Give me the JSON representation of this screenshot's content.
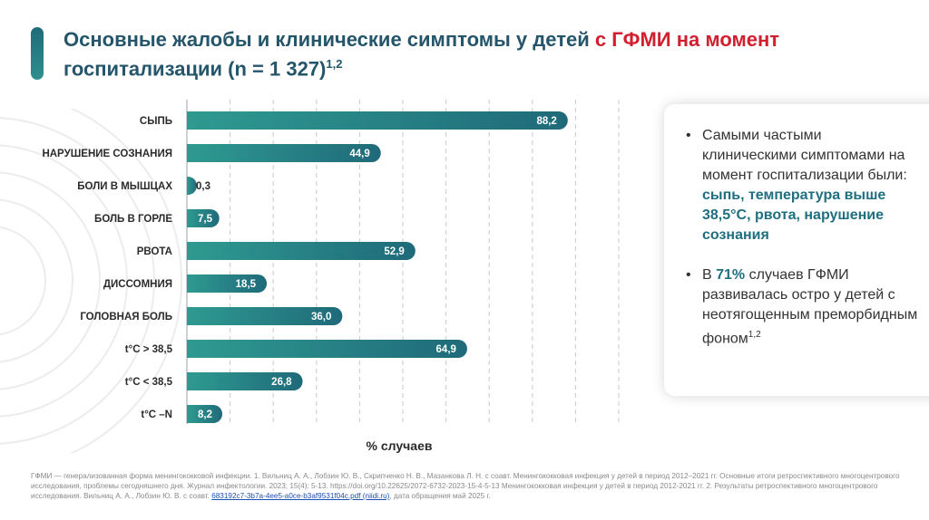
{
  "header": {
    "title_main": "Основные жалобы и клинические симптомы у детей",
    "title_accent": "с ГФМИ на момент",
    "title_line2": "госпитализации (n = 1 327)",
    "title_sup": "1,2"
  },
  "chart_data": {
    "type": "bar",
    "orientation": "horizontal",
    "categories": [
      "СЫПЬ",
      "НАРУШЕНИЕ СОЗНАНИЯ",
      "БОЛИ В МЫШЦАХ",
      "БОЛЬ В ГОРЛЕ",
      "РВОТА",
      "ДИССОМНИЯ",
      "ГОЛОВНАЯ БОЛЬ",
      "t°C > 38,5",
      "t°C < 38,5",
      "t°C –N"
    ],
    "values": [
      88.2,
      44.9,
      0.3,
      7.5,
      52.9,
      18.5,
      36.0,
      64.9,
      26.8,
      8.2
    ],
    "value_labels": [
      "88,2",
      "44,9",
      "0,3",
      "7,5",
      "52,9",
      "18,5",
      "36,0",
      "64,9",
      "26,8",
      "8,2"
    ],
    "xlabel": "% случаев",
    "xlim": [
      0,
      100
    ],
    "grid": true,
    "bar_color": "#1f6a7a",
    "bar_color_light": "#2f9a90"
  },
  "side_card": {
    "bullet1_text": "Самыми частыми клиническими симптомами на момент госпитализации были:",
    "bullet1_highlight": "сыпь, температура выше 38,5°С, рвота, нарушение сознания",
    "bullet2_pre": "В",
    "bullet2_highlight": "71%",
    "bullet2_post": "случаев ГФМИ развивалась остро у детей с неотягощенным преморбидным фоном",
    "bullet2_sup": "1,2"
  },
  "footnote": {
    "text": "ГФМИ — генерализованная форма менингококковой инфекции. 1. Вильниц А. А., Лобзин Ю. В., Скрипченко Н. В., Мазанкова Л. Н. с соавт. Менингококковая инфекция у детей в период 2012–2021 гг. Основные итоги ретроспективного многоцентрового исследования, проблемы сегодняшнего дня. Журнал инфектологии. 2023; 15(4): 5-13. https://doi.org/10.22625/2072-6732-2023-15-4-5-13 Менингококковая инфекция у детей в период 2012-2021 гг. 2. Результаты ретроспективного многоцентрового исследования. Вильниц А. А., Лобзин Ю. В. с соавт.",
    "link": "683192c7-3b7a-4ee5-a0ce-b3af9531f04c.pdf (niidi.ru)",
    "tail": ", дата обращения май 2025 г."
  },
  "colors": {
    "title": "#24556a",
    "title_accent": "#d0202f",
    "highlight": "#1f6f80"
  }
}
